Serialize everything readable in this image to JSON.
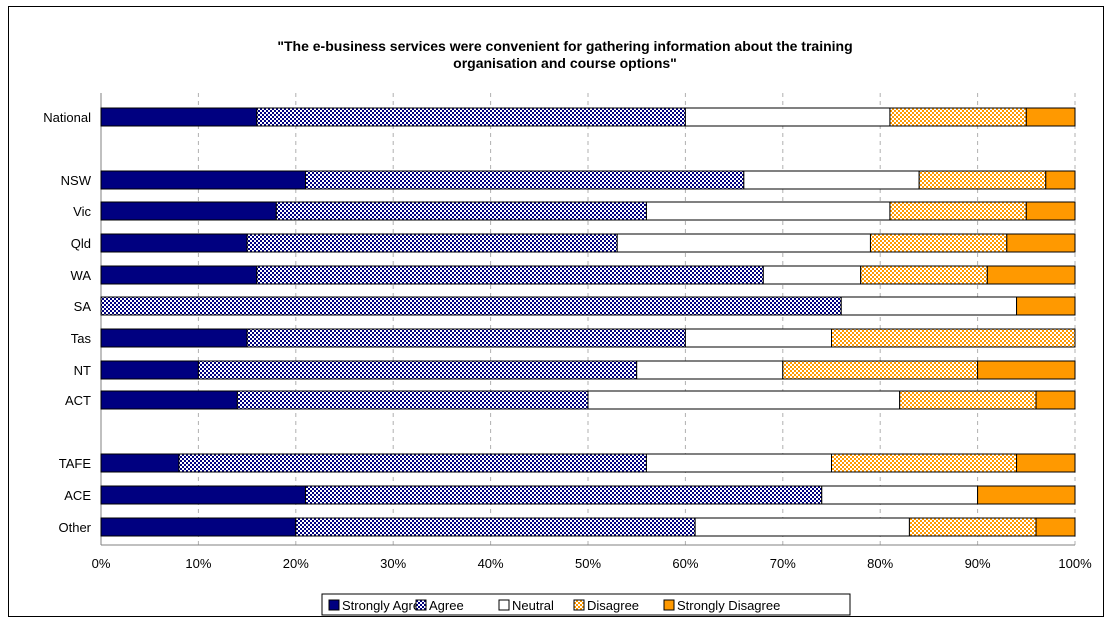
{
  "chart_data": {
    "type": "bar",
    "orientation": "horizontal",
    "stacked": "100%",
    "title_lines": [
      "\"The e-business services were convenient for gathering information about the training",
      "organisation and course options\""
    ],
    "xlim": [
      0,
      100
    ],
    "x_ticks": [
      "0%",
      "10%",
      "20%",
      "30%",
      "40%",
      "50%",
      "60%",
      "70%",
      "80%",
      "90%",
      "100%"
    ],
    "grid": "vertical dashed",
    "legend_position": "bottom",
    "categories": [
      "National",
      "NSW",
      "Vic",
      "Qld",
      "WA",
      "SA",
      "Tas",
      "NT",
      "ACT",
      "TAFE",
      "ACE",
      "Other"
    ],
    "series": [
      {
        "name": "Strongly Agree",
        "color": "#000080",
        "pattern": "solid",
        "values": [
          16,
          21,
          18,
          15,
          16,
          0,
          15,
          10,
          14,
          8,
          21,
          20
        ]
      },
      {
        "name": "Agree",
        "color": "#000080",
        "pattern": "checker",
        "values": [
          44,
          45,
          38,
          38,
          52,
          76,
          45,
          45,
          36,
          48,
          53,
          41
        ]
      },
      {
        "name": "Neutral",
        "color": "#ffffff",
        "pattern": "solid",
        "values": [
          21,
          18,
          25,
          26,
          10,
          18,
          15,
          15,
          32,
          19,
          16,
          22
        ]
      },
      {
        "name": "Disagree",
        "color": "#ff9900",
        "pattern": "checker",
        "values": [
          14,
          13,
          14,
          14,
          13,
          0,
          25,
          20,
          14,
          19,
          0,
          13
        ]
      },
      {
        "name": "Strongly Disagree",
        "color": "#ff9900",
        "pattern": "solid",
        "values": [
          5,
          3,
          5,
          7,
          9,
          6,
          0,
          10,
          4,
          6,
          10,
          4
        ]
      }
    ]
  }
}
